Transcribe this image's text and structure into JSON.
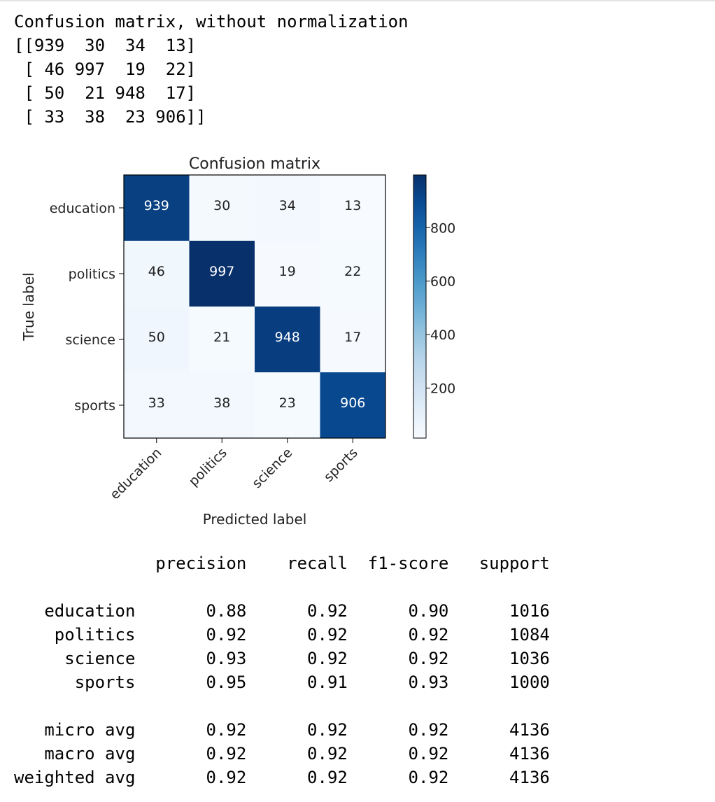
{
  "output_header": "Confusion matrix, without normalization",
  "matrix_text_lines": [
    "[[939  30  34  13]",
    " [ 46 997  19  22]",
    " [ 50  21 948  17]",
    " [ 33  38  23 906]]"
  ],
  "chart_data": {
    "type": "heatmap",
    "title": "Confusion matrix",
    "xlabel": "Predicted label",
    "ylabel": "True label",
    "x_categories": [
      "education",
      "politics",
      "science",
      "sports"
    ],
    "y_categories": [
      "education",
      "politics",
      "science",
      "sports"
    ],
    "values": [
      [
        939,
        30,
        34,
        13
      ],
      [
        46,
        997,
        19,
        22
      ],
      [
        50,
        21,
        948,
        17
      ],
      [
        33,
        38,
        23,
        906
      ]
    ],
    "colormap": "Blues",
    "colorbar_ticks": [
      200,
      400,
      600,
      800
    ],
    "colorbar_range": [
      13,
      997
    ]
  },
  "report": {
    "headers": [
      "precision",
      "recall",
      "f1-score",
      "support"
    ],
    "class_rows": [
      {
        "label": "education",
        "precision": "0.88",
        "recall": "0.92",
        "f1": "0.90",
        "support": "1016"
      },
      {
        "label": "politics",
        "precision": "0.92",
        "recall": "0.92",
        "f1": "0.92",
        "support": "1084"
      },
      {
        "label": "science",
        "precision": "0.93",
        "recall": "0.92",
        "f1": "0.92",
        "support": "1036"
      },
      {
        "label": "sports",
        "precision": "0.95",
        "recall": "0.91",
        "f1": "0.93",
        "support": "1000"
      }
    ],
    "avg_rows": [
      {
        "label": "micro avg",
        "precision": "0.92",
        "recall": "0.92",
        "f1": "0.92",
        "support": "4136"
      },
      {
        "label": "macro avg",
        "precision": "0.92",
        "recall": "0.92",
        "f1": "0.92",
        "support": "4136"
      },
      {
        "label": "weighted avg",
        "precision": "0.92",
        "recall": "0.92",
        "f1": "0.92",
        "support": "4136"
      }
    ]
  }
}
